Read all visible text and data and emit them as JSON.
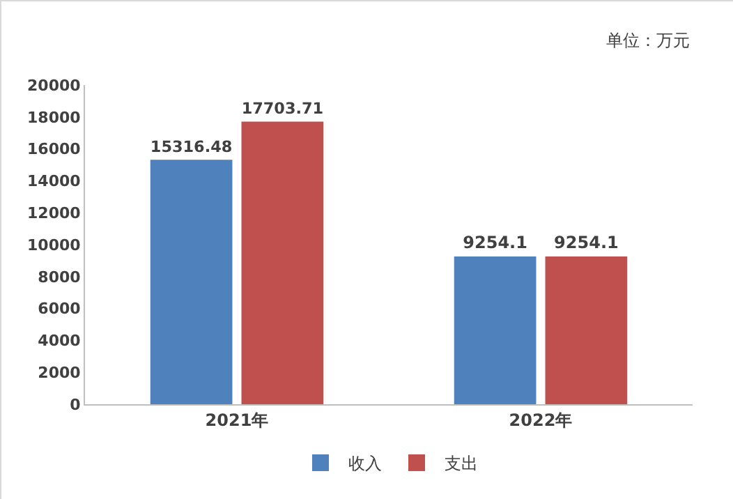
{
  "chart_data": {
    "type": "bar",
    "categories": [
      "2021年",
      "2022年"
    ],
    "series": [
      {
        "name": "收入",
        "color": "#4f81bd",
        "values": [
          15316.48,
          9254.1
        ]
      },
      {
        "name": "支出",
        "color": "#c0504d",
        "values": [
          17703.71,
          9254.1
        ]
      }
    ],
    "ylim": [
      0,
      20000
    ],
    "yticks": [
      0,
      2000,
      4000,
      6000,
      8000,
      10000,
      12000,
      14000,
      16000,
      18000,
      20000
    ],
    "grid": false,
    "legend": "bottom",
    "data_labels": true,
    "annotations": [
      "单位：万元"
    ]
  }
}
